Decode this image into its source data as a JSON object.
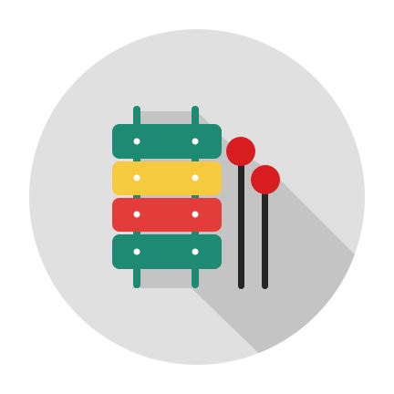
{
  "icon": {
    "subject": "xylophone-icon",
    "colors": {
      "page_background": "#ffffff",
      "circle": "#e0e0e0",
      "shadow": "#c4c4c4",
      "frame_post": "#1f8a73",
      "bar_top": "#1e8a74",
      "bar_second": "#f6c93f",
      "bar_third": "#e23d3a",
      "bar_bottom": "#1e8a74",
      "bar_hole": "#ffffff",
      "mallet_stick": "#262626",
      "mallet_head": "#d81d20"
    }
  }
}
